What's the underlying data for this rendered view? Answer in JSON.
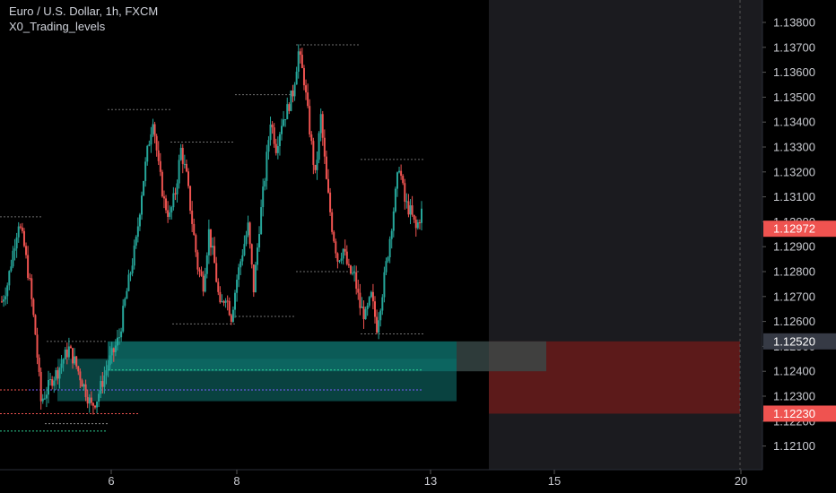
{
  "header": {
    "title": "Euro / U.S. Dollar, 1h, FXCM",
    "indicator": "X0_Trading_levels"
  },
  "colors": {
    "background": "#000000",
    "up": "#26a69a",
    "down": "#ef5350",
    "level_line": "#6e6e6e",
    "projection_shade": "#1b1b1f",
    "demand_zone": "#0b4d4b",
    "demand_zone_light": "#0d6b66",
    "target_zone": "#5c1a1a",
    "price_tag_red": "#ef5350",
    "price_tag_grey": "#363a45"
  },
  "chart_data": {
    "type": "candlestick",
    "instrument": "Euro / U.S. Dollar",
    "timeframe": "1h",
    "source": "FXCM",
    "x_ticks": [
      "6",
      "8",
      "13",
      "15",
      "20"
    ],
    "y_ticks": [
      "1.13800",
      "1.13700",
      "1.13600",
      "1.13500",
      "1.13400",
      "1.13300",
      "1.13200",
      "1.13100",
      "1.13000",
      "1.12900",
      "1.12800",
      "1.12700",
      "1.12600",
      "1.12500",
      "1.12400",
      "1.12300",
      "1.12200",
      "1.12100"
    ],
    "ylim": [
      1.1203,
      1.1385
    ],
    "price_labels": [
      {
        "value": 1.12972,
        "text": "1.12972",
        "color": "red"
      },
      {
        "value": 1.1252,
        "text": "1.12520",
        "color": "grey"
      },
      {
        "value": 1.1223,
        "text": "1.12230",
        "color": "red"
      }
    ],
    "close_path": [
      1.1268,
      1.1275,
      1.1288,
      1.13,
      1.129,
      1.1275,
      1.1255,
      1.1228,
      1.1232,
      1.1237,
      1.124,
      1.1245,
      1.1249,
      1.1244,
      1.1238,
      1.1232,
      1.1226,
      1.1229,
      1.1236,
      1.1243,
      1.1248,
      1.1254,
      1.1268,
      1.128,
      1.1292,
      1.1312,
      1.1328,
      1.1342,
      1.1322,
      1.1308,
      1.1302,
      1.1312,
      1.1329,
      1.1318,
      1.13,
      1.1282,
      1.1275,
      1.1296,
      1.1283,
      1.1265,
      1.1271,
      1.1262,
      1.1277,
      1.1288,
      1.1298,
      1.1273,
      1.1298,
      1.1318,
      1.1341,
      1.133,
      1.134,
      1.1345,
      1.1352,
      1.1368,
      1.1357,
      1.1337,
      1.1318,
      1.1342,
      1.1316,
      1.1298,
      1.1285,
      1.1289,
      1.128,
      1.1278,
      1.1266,
      1.1262,
      1.127,
      1.1258,
      1.1272,
      1.1288,
      1.1305,
      1.1323,
      1.1308,
      1.1304,
      1.1297,
      1.1304
    ],
    "levels": [
      {
        "price": 1.1302,
        "x_from": 0,
        "x_to": 48
      },
      {
        "price": 1.1252,
        "x_from": 52,
        "x_to": 118
      },
      {
        "price": 1.1345,
        "x_from": 120,
        "x_to": 190
      },
      {
        "price": 1.1332,
        "x_from": 190,
        "x_to": 262
      },
      {
        "price": 1.1259,
        "x_from": 192,
        "x_to": 262
      },
      {
        "price": 1.1262,
        "x_from": 262,
        "x_to": 330
      },
      {
        "price": 1.1351,
        "x_from": 262,
        "x_to": 330
      },
      {
        "price": 1.1371,
        "x_from": 330,
        "x_to": 402
      },
      {
        "price": 1.128,
        "x_from": 330,
        "x_to": 402
      },
      {
        "price": 1.1325,
        "x_from": 402,
        "x_to": 472
      },
      {
        "price": 1.1255,
        "x_from": 402,
        "x_to": 472
      }
    ]
  }
}
